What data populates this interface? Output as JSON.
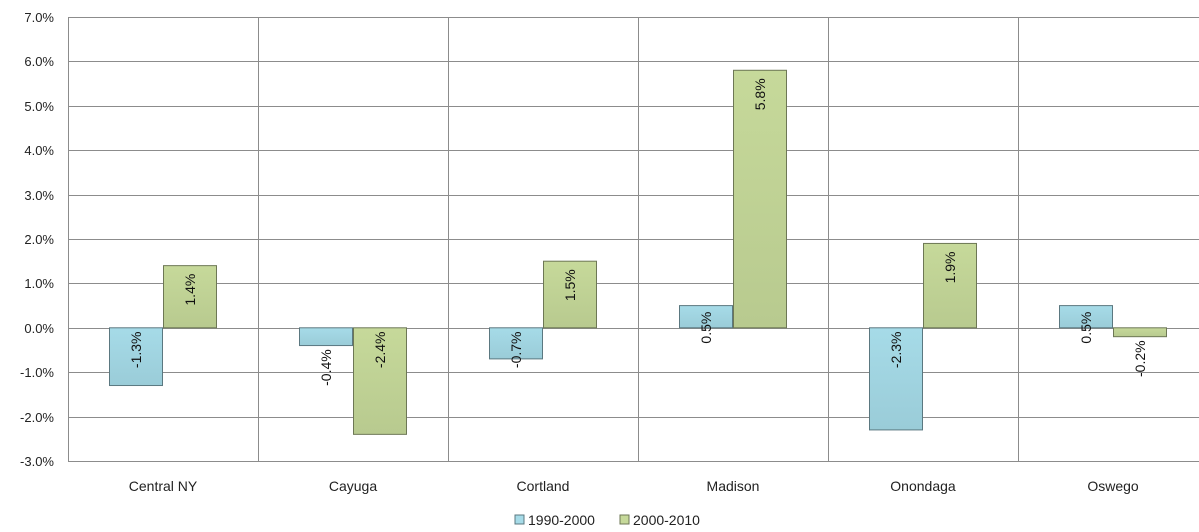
{
  "chart_data": {
    "type": "bar",
    "title": "",
    "xlabel": "",
    "ylabel": "",
    "categories": [
      "Central NY",
      "Cayuga",
      "Cortland",
      "Madison",
      "Onondaga",
      "Oswego"
    ],
    "series": [
      {
        "name": "1990-2000",
        "values": [
          -1.3,
          -0.4,
          -0.7,
          0.5,
          -2.3,
          0.5
        ],
        "labels": [
          "-1.3%",
          "-0.4%",
          "-0.7%",
          "0.5%",
          "-2.3%",
          "0.5%"
        ],
        "color": "#a6dbe8"
      },
      {
        "name": "2000-2010",
        "values": [
          1.4,
          -2.4,
          1.5,
          5.8,
          1.9,
          -0.2
        ],
        "labels": [
          "1.4%",
          "-2.4%",
          "1.5%",
          "5.8%",
          "1.9%",
          "-0.2%"
        ],
        "color": "#c6d99a"
      }
    ],
    "ylim": [
      -3.0,
      7.0
    ],
    "yticks": [
      -3.0,
      -2.0,
      -1.0,
      0.0,
      1.0,
      2.0,
      3.0,
      4.0,
      5.0,
      6.0,
      7.0
    ],
    "ytick_labels": [
      "-3.0%",
      "-2.0%",
      "-1.0%",
      "0.0%",
      "1.0%",
      "2.0%",
      "3.0%",
      "4.0%",
      "5.0%",
      "6.0%",
      "7.0%"
    ],
    "grid": true,
    "legend_position": "bottom"
  }
}
